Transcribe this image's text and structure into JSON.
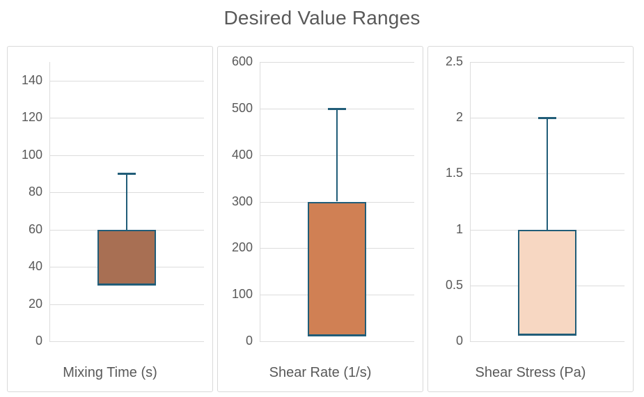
{
  "title": "Desired Value Ranges",
  "colors": {
    "accent_line": "#215d78",
    "gridline": "#dcdcdc",
    "panel_border": "#d9d9d9",
    "text": "#595959",
    "background": "#ffffff"
  },
  "chart_data": {
    "type": "box",
    "title": "Desired Value Ranges",
    "legend": "none",
    "grid": true,
    "panels": [
      {
        "category": "Mixing Time (s)",
        "axis_min": 0,
        "axis_max": 150,
        "ticks": [
          0,
          20,
          40,
          60,
          80,
          100,
          120,
          140
        ],
        "tick_labels": [
          "0",
          "20",
          "40",
          "60",
          "80",
          "100",
          "120",
          "140"
        ],
        "box_low": 30,
        "box_high": 60,
        "whisker_high": 90,
        "fill": "#a86f53"
      },
      {
        "category": "Shear Rate (1/s)",
        "axis_min": 0,
        "axis_max": 600,
        "ticks": [
          0,
          100,
          200,
          300,
          400,
          500,
          600
        ],
        "tick_labels": [
          "0",
          "100",
          "200",
          "300",
          "400",
          "500",
          "600"
        ],
        "box_low": 10,
        "box_high": 300,
        "whisker_high": 500,
        "fill": "#d08054"
      },
      {
        "category": "Shear Stress (Pa)",
        "axis_min": 0,
        "axis_max": 2.5,
        "ticks": [
          0,
          0.5,
          1,
          1.5,
          2,
          2.5
        ],
        "tick_labels": [
          "0",
          "0.5",
          "1",
          "1.5",
          "2",
          "2.5"
        ],
        "box_low": 0.05,
        "box_high": 1,
        "whisker_high": 2,
        "fill": "#f7d7c2"
      }
    ]
  }
}
